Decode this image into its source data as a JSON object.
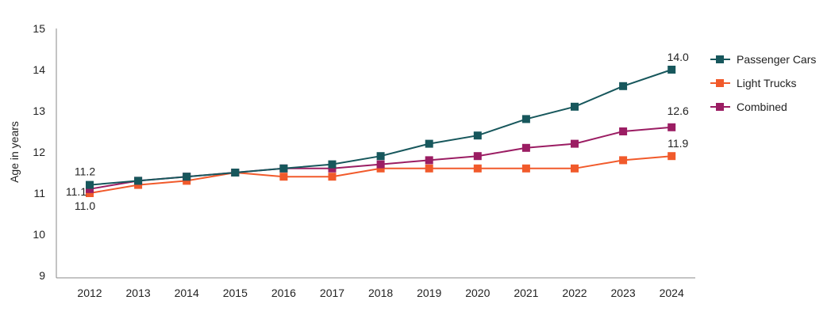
{
  "chart_data": {
    "type": "line",
    "title": "",
    "xlabel": "",
    "ylabel": "Age in years",
    "ylim": [
      9,
      15
    ],
    "yticks": [
      "9",
      "10",
      "11",
      "12",
      "13",
      "14",
      "15"
    ],
    "categories": [
      "2012",
      "2013",
      "2014",
      "2015",
      "2016",
      "2017",
      "2018",
      "2019",
      "2020",
      "2021",
      "2022",
      "2023",
      "2024"
    ],
    "grid": false,
    "legend": "right",
    "series": [
      {
        "name": "Passenger Cars",
        "color": "#17575c",
        "values": [
          11.2,
          11.3,
          11.4,
          11.5,
          11.6,
          11.7,
          11.9,
          12.2,
          12.4,
          12.8,
          13.1,
          13.6,
          14.0
        ]
      },
      {
        "name": "Light Trucks",
        "color": "#f15a2b",
        "values": [
          11.0,
          11.2,
          11.3,
          11.5,
          11.4,
          11.4,
          11.6,
          11.6,
          11.6,
          11.6,
          11.6,
          11.8,
          11.9
        ]
      },
      {
        "name": "Combined",
        "color": "#9b1d63",
        "values": [
          11.1,
          11.3,
          11.4,
          11.5,
          11.6,
          11.6,
          11.7,
          11.8,
          11.9,
          12.1,
          12.2,
          12.5,
          12.6
        ]
      }
    ],
    "annotations": [
      {
        "series": "Passenger Cars",
        "category": "2012",
        "text": "11.2"
      },
      {
        "series": "Combined",
        "category": "2012",
        "text": "11.1"
      },
      {
        "series": "Light Trucks",
        "category": "2012",
        "text": "11.0"
      },
      {
        "series": "Passenger Cars",
        "category": "2024",
        "text": "14.0"
      },
      {
        "series": "Combined",
        "category": "2024",
        "text": "12.6"
      },
      {
        "series": "Light Trucks",
        "category": "2024",
        "text": "11.9"
      }
    ]
  }
}
